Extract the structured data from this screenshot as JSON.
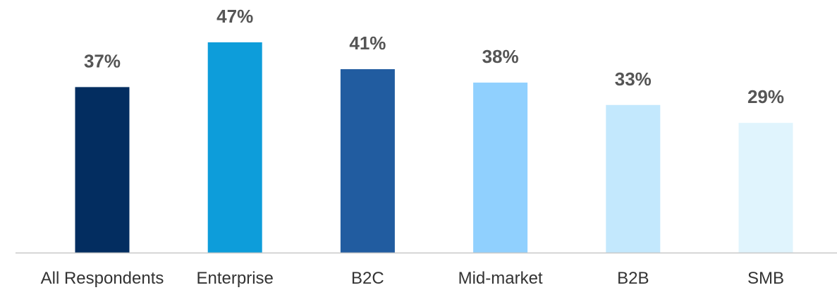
{
  "chart_data": {
    "type": "bar",
    "categories": [
      "All Respondents",
      "Enterprise",
      "B2C",
      "Mid-market",
      "B2B",
      "SMB"
    ],
    "values": [
      37,
      47,
      41,
      38,
      33,
      29
    ],
    "value_labels": [
      "37%",
      "47%",
      "41%",
      "38%",
      "33%",
      "29%"
    ],
    "colors": [
      "#032d60",
      "#0d9dda",
      "#215ca0",
      "#90d0fe",
      "#c3e8fd",
      "#e0f4fd"
    ],
    "title": "",
    "xlabel": "",
    "ylabel": "",
    "ylim": [
      0,
      47
    ],
    "grid": false,
    "legend": "none"
  }
}
